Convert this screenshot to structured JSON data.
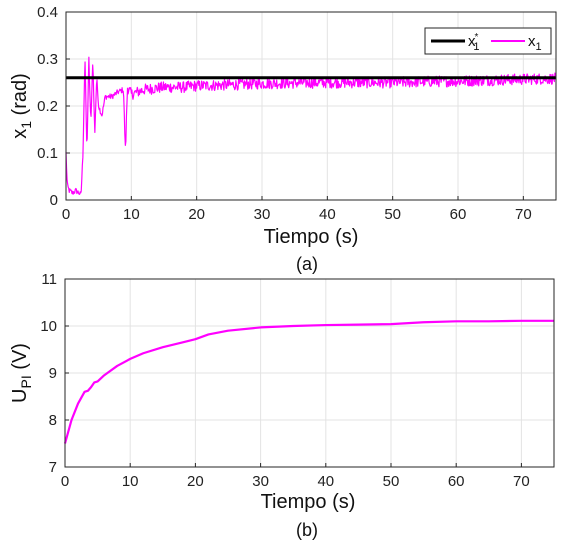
{
  "chart_data": [
    {
      "id": "a",
      "type": "line",
      "caption": "(a)",
      "xlabel": "Tiempo (s)",
      "ylabel_main": "x",
      "ylabel_sub": "1",
      "ylabel_unit": "(rad)",
      "xlim": [
        0,
        75
      ],
      "ylim": [
        0,
        0.4
      ],
      "xticks": [
        0,
        10,
        20,
        30,
        40,
        50,
        60,
        70
      ],
      "yticks": [
        0,
        0.1,
        0.2,
        0.3,
        0.4
      ],
      "xtick_labels": [
        "0",
        "10",
        "20",
        "30",
        "40",
        "50",
        "60",
        "70"
      ],
      "ytick_labels": [
        "0",
        "0.1",
        "0.2",
        "0.3",
        "0.4"
      ],
      "grid": true,
      "legend_position": "top-right",
      "series": [
        {
          "name": "x",
          "name_sub": "1",
          "name_sup": "*",
          "color": "#000000",
          "x": [
            0,
            75
          ],
          "y": [
            0.26,
            0.26
          ]
        },
        {
          "name": "x",
          "name_sub": "1",
          "color": "#ff00ff",
          "noisy": true,
          "x": [
            0,
            0.2,
            0.5,
            1,
            1.5,
            2,
            2.3,
            2.6,
            2.9,
            3.2,
            3.5,
            3.8,
            4.1,
            4.4,
            4.7,
            5,
            5.5,
            6,
            7,
            8,
            8.8,
            9.1,
            9.4,
            10,
            12,
            15,
            18,
            20,
            25,
            30,
            40,
            50,
            55,
            60,
            65,
            70,
            73,
            75
          ],
          "y": [
            0.1,
            0.03,
            0.02,
            0.015,
            0.02,
            0.015,
            0.01,
            0.1,
            0.305,
            0.1,
            0.3,
            0.16,
            0.3,
            0.14,
            0.26,
            0.2,
            0.18,
            0.22,
            0.22,
            0.23,
            0.235,
            0.1,
            0.24,
            0.225,
            0.235,
            0.24,
            0.24,
            0.243,
            0.245,
            0.248,
            0.25,
            0.25,
            0.252,
            0.253,
            0.255,
            0.257,
            0.258,
            0.258
          ]
        }
      ]
    },
    {
      "id": "b",
      "type": "line",
      "caption": "(b)",
      "xlabel": "Tiempo (s)",
      "ylabel_main": "U",
      "ylabel_sub": "PI",
      "ylabel_unit": "(V)",
      "xlim": [
        0,
        75
      ],
      "ylim": [
        7,
        11
      ],
      "xticks": [
        0,
        10,
        20,
        30,
        40,
        50,
        60,
        70
      ],
      "yticks": [
        7,
        8,
        9,
        10,
        11
      ],
      "xtick_labels": [
        "0",
        "10",
        "20",
        "30",
        "40",
        "50",
        "60",
        "70"
      ],
      "ytick_labels": [
        "7",
        "8",
        "9",
        "10",
        "11"
      ],
      "grid": true,
      "series": [
        {
          "color": "#ff00ff",
          "x": [
            0,
            0.5,
            1,
            2,
            3,
            3.5,
            4,
            4.5,
            5,
            6,
            8,
            10,
            12,
            15,
            18,
            20,
            22,
            25,
            30,
            35,
            40,
            45,
            50,
            55,
            60,
            65,
            70,
            75
          ],
          "y": [
            7.5,
            7.75,
            8.0,
            8.35,
            8.6,
            8.62,
            8.7,
            8.8,
            8.82,
            8.95,
            9.15,
            9.3,
            9.42,
            9.55,
            9.65,
            9.72,
            9.82,
            9.9,
            9.97,
            10.0,
            10.02,
            10.03,
            10.04,
            10.08,
            10.1,
            10.1,
            10.11,
            10.11
          ]
        }
      ]
    }
  ]
}
